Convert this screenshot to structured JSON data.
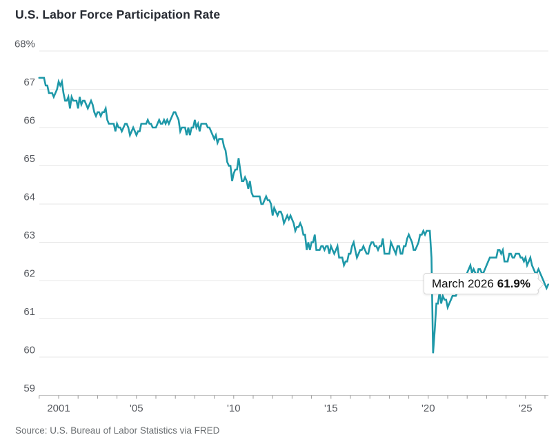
{
  "title": "U.S. Labor Force Participation Rate",
  "source": "Source: U.S. Bureau of Labor Statistics via FRED",
  "tooltip": {
    "label": "March 2026",
    "value": "61.9%"
  },
  "colors": {
    "line": "#1e98a8",
    "grid": "#e7e7e7",
    "axis": "#bdbdbd",
    "tick": "#9a9a9a",
    "axis_label": "#55585e",
    "title": "#272b33",
    "source": "#6b6f72",
    "tooltip_border": "#d8d8d8"
  },
  "chart_data": {
    "type": "line",
    "title": "U.S. Labor Force Participation Rate",
    "unit": "%",
    "frequency": "monthly",
    "x_start": "2000-01",
    "x_end": "2026-03",
    "xlim": [
      2000.0,
      2026.25
    ],
    "ylim": [
      59,
      68
    ],
    "grid": "horizontal-only",
    "y_tick_values": [
      68,
      67,
      66,
      65,
      64,
      63,
      62,
      61,
      60,
      59
    ],
    "y_tick_labels": [
      "68%",
      "67",
      "66",
      "65",
      "64",
      "63",
      "62",
      "61",
      "60",
      "59"
    ],
    "x_tick_years_minor": [
      2000,
      2001,
      2002,
      2003,
      2004,
      2005,
      2006,
      2007,
      2008,
      2009,
      2010,
      2011,
      2012,
      2013,
      2014,
      2015,
      2016,
      2017,
      2018,
      2019,
      2020,
      2021,
      2022,
      2023,
      2024,
      2025,
      2026
    ],
    "x_label_years": [
      2001,
      2005,
      2010,
      2015,
      2020,
      2025
    ],
    "x_label_texts": [
      "2001",
      "'05",
      "'10",
      "'15",
      "'20",
      "'25"
    ],
    "annotation": {
      "label": "March 2026",
      "value": 61.9
    },
    "series": [
      {
        "name": "U.S. labor force participation rate (%)",
        "values": [
          67.3,
          67.3,
          67.3,
          67.3,
          67.1,
          67.1,
          66.9,
          66.9,
          66.9,
          66.8,
          66.9,
          67.0,
          67.2,
          67.1,
          67.2,
          66.9,
          66.7,
          66.7,
          66.8,
          66.5,
          66.8,
          66.7,
          66.7,
          66.7,
          66.5,
          66.8,
          66.6,
          66.7,
          66.7,
          66.6,
          66.5,
          66.6,
          66.7,
          66.6,
          66.4,
          66.3,
          66.4,
          66.4,
          66.3,
          66.4,
          66.4,
          66.5,
          66.2,
          66.1,
          66.1,
          66.1,
          66.1,
          65.9,
          66.1,
          66.0,
          66.0,
          65.9,
          66.0,
          66.1,
          66.1,
          66.0,
          65.8,
          65.9,
          66.0,
          65.9,
          65.8,
          65.9,
          65.9,
          66.1,
          66.1,
          66.1,
          66.1,
          66.2,
          66.1,
          66.1,
          66.0,
          66.0,
          66.0,
          66.1,
          66.2,
          66.1,
          66.1,
          66.2,
          66.1,
          66.2,
          66.1,
          66.2,
          66.3,
          66.4,
          66.4,
          66.3,
          66.2,
          65.9,
          66.0,
          66.0,
          66.0,
          65.8,
          66.0,
          65.8,
          66.0,
          66.0,
          66.2,
          66.0,
          66.1,
          65.9,
          66.1,
          66.1,
          66.1,
          66.1,
          66.0,
          66.0,
          65.9,
          65.8,
          65.7,
          65.8,
          65.6,
          65.7,
          65.7,
          65.7,
          65.5,
          65.4,
          65.1,
          65.0,
          65.0,
          64.6,
          64.8,
          64.9,
          64.9,
          65.2,
          64.9,
          64.6,
          64.6,
          64.7,
          64.6,
          64.4,
          64.6,
          64.3,
          64.2,
          64.2,
          64.2,
          64.2,
          64.2,
          64.0,
          64.0,
          64.1,
          64.2,
          64.1,
          64.1,
          64.0,
          63.7,
          63.9,
          63.8,
          63.7,
          63.8,
          63.8,
          63.7,
          63.5,
          63.6,
          63.7,
          63.6,
          63.7,
          63.6,
          63.5,
          63.3,
          63.4,
          63.4,
          63.5,
          63.4,
          63.2,
          63.2,
          62.8,
          63.0,
          62.8,
          63.0,
          63.0,
          63.2,
          62.8,
          62.8,
          62.8,
          62.9,
          62.9,
          62.8,
          62.9,
          62.9,
          62.7,
          62.9,
          62.8,
          62.7,
          62.8,
          62.9,
          62.6,
          62.6,
          62.6,
          62.4,
          62.5,
          62.5,
          62.7,
          62.7,
          62.9,
          63.0,
          62.8,
          62.6,
          62.7,
          62.8,
          62.8,
          62.9,
          62.8,
          62.7,
          62.7,
          62.9,
          63.0,
          63.0,
          62.9,
          62.9,
          62.8,
          62.9,
          62.9,
          63.1,
          62.7,
          62.7,
          62.7,
          62.7,
          63.0,
          62.9,
          62.8,
          62.7,
          62.9,
          62.9,
          62.7,
          62.7,
          62.9,
          62.9,
          63.1,
          63.2,
          63.1,
          63.0,
          62.8,
          62.8,
          62.9,
          63.0,
          63.2,
          63.2,
          63.3,
          63.2,
          63.3,
          63.3,
          63.3,
          62.6,
          60.1,
          60.7,
          61.4,
          61.4,
          61.7,
          61.4,
          61.6,
          61.5,
          61.5,
          61.3,
          61.4,
          61.5,
          61.6,
          61.6,
          61.6,
          61.7,
          61.7,
          61.7,
          61.8,
          61.9,
          62.0,
          62.2,
          62.3,
          62.4,
          62.2,
          62.3,
          62.2,
          62.1,
          62.3,
          62.3,
          62.2,
          62.2,
          62.3,
          62.4,
          62.5,
          62.6,
          62.6,
          62.6,
          62.6,
          62.6,
          62.8,
          62.8,
          62.7,
          62.8,
          62.5,
          62.5,
          62.5,
          62.7,
          62.7,
          62.6,
          62.6,
          62.7,
          62.7,
          62.7,
          62.6,
          62.6,
          62.5,
          62.6,
          62.4,
          62.5,
          62.6,
          62.4,
          62.3,
          62.2,
          62.2,
          62.3,
          62.2,
          62.1,
          62.0,
          61.9,
          61.8,
          61.9
        ]
      }
    ]
  }
}
